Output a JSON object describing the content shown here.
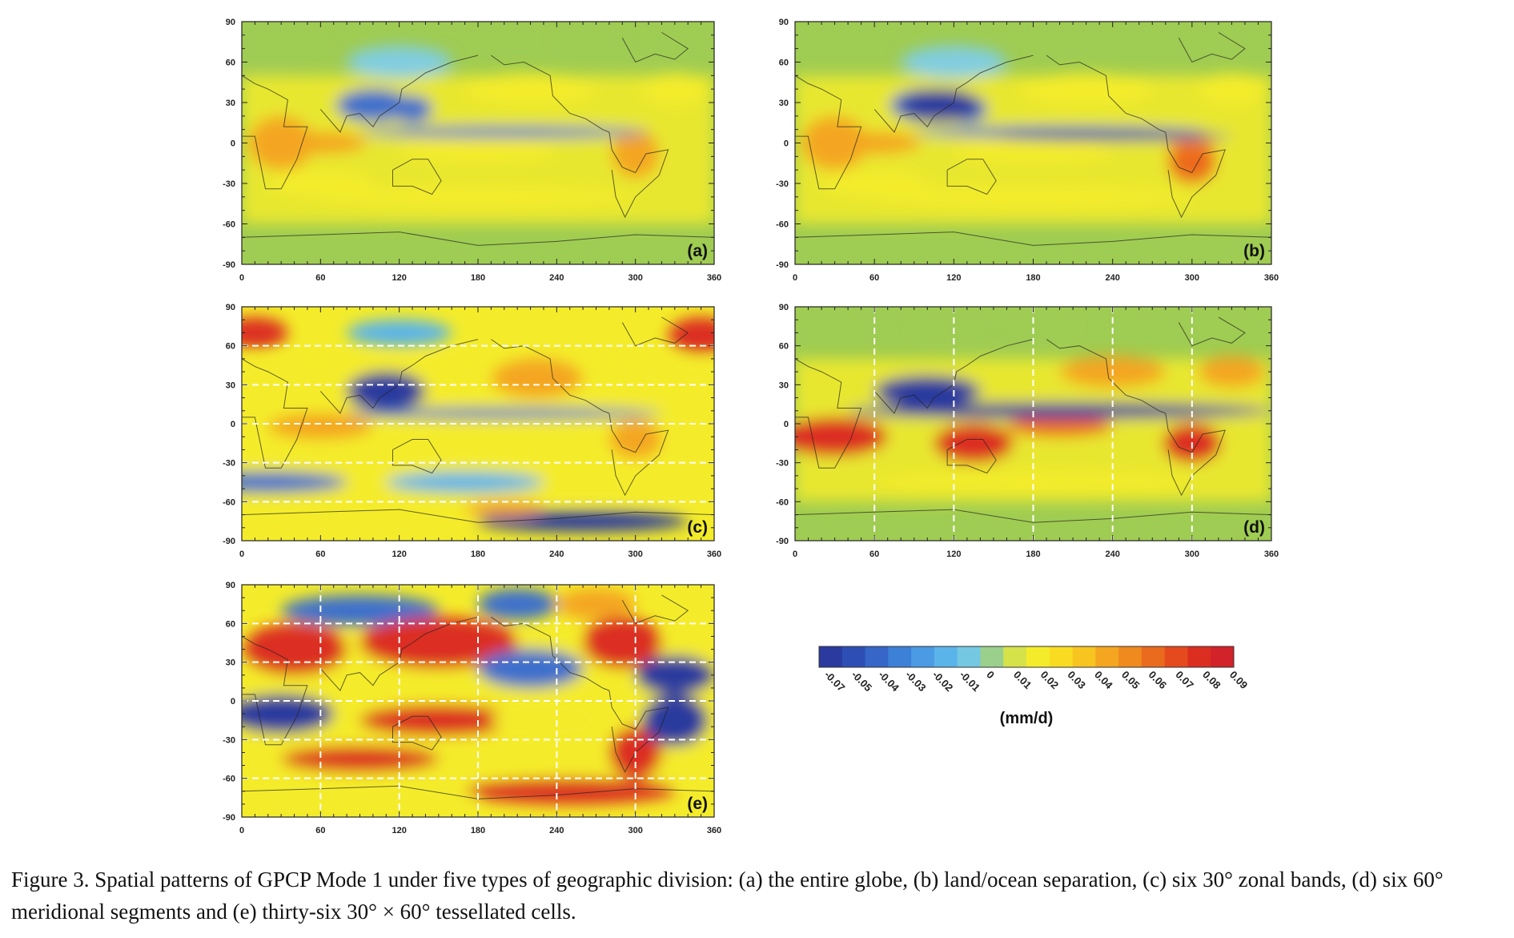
{
  "caption": "Figure 3.   Spatial patterns of GPCP Mode 1 under five types of geographic division: (a) the entire globe, (b) land/ocean separation, (c) six 30° zonal bands, (d) six 60° meridional segments and (e) thirty-six 30° × 60° tessellated cells.",
  "chart_data": [
    {
      "type": "heatmap",
      "panel_label": "(a)",
      "x_ticks": [
        "0",
        "60",
        "120",
        "180",
        "240",
        "300",
        "360"
      ],
      "y_ticks": [
        "90",
        "60",
        "30",
        "0",
        "-30",
        "-60",
        "-90"
      ],
      "xlim": [
        0,
        360
      ],
      "ylim": [
        -90,
        90
      ],
      "division": "none"
    },
    {
      "type": "heatmap",
      "panel_label": "(b)",
      "x_ticks": [
        "0",
        "60",
        "120",
        "180",
        "240",
        "300",
        "360"
      ],
      "y_ticks": [
        "90",
        "60",
        "30",
        "0",
        "-30",
        "-60",
        "-90"
      ],
      "xlim": [
        0,
        360
      ],
      "ylim": [
        -90,
        90
      ],
      "division": "land/ocean"
    },
    {
      "type": "heatmap",
      "panel_label": "(c)",
      "x_ticks": [
        "0",
        "60",
        "120",
        "180",
        "240",
        "300",
        "360"
      ],
      "y_ticks": [
        "90",
        "60",
        "30",
        "0",
        "-30",
        "-60",
        "-90"
      ],
      "xlim": [
        0,
        360
      ],
      "ylim": [
        -90,
        90
      ],
      "division": "zonal bands",
      "lat_breaks": [
        60,
        30,
        0,
        -30,
        -60
      ]
    },
    {
      "type": "heatmap",
      "panel_label": "(d)",
      "x_ticks": [
        "0",
        "60",
        "120",
        "180",
        "240",
        "300",
        "360"
      ],
      "y_ticks": [
        "90",
        "60",
        "30",
        "0",
        "-30",
        "-60",
        "-90"
      ],
      "xlim": [
        0,
        360
      ],
      "ylim": [
        -90,
        90
      ],
      "division": "meridional segments",
      "lon_breaks": [
        60,
        120,
        180,
        240,
        300
      ]
    },
    {
      "type": "heatmap",
      "panel_label": "(e)",
      "x_ticks": [
        "0",
        "60",
        "120",
        "180",
        "240",
        "300",
        "360"
      ],
      "y_ticks": [
        "90",
        "60",
        "30",
        "0",
        "-30",
        "-60",
        "-90"
      ],
      "xlim": [
        0,
        360
      ],
      "ylim": [
        -90,
        90
      ],
      "division": "tessellated cells",
      "lat_breaks": [
        60,
        30,
        0,
        -30,
        -60
      ],
      "lon_breaks": [
        60,
        120,
        180,
        240,
        300
      ]
    }
  ],
  "colorbar": {
    "ticks": [
      "-0.07",
      "-0.05",
      "-0.04",
      "-0.03",
      "-0.02",
      "-0.01",
      "0",
      "0.01",
      "0.02",
      "0.03",
      "0.04",
      "0.05",
      "0.06",
      "0.07",
      "0.08",
      "0.09"
    ],
    "unit": "(mm/d)",
    "colors": [
      "#2a3a9e",
      "#2d4fb5",
      "#3566c8",
      "#3d80d8",
      "#4a9ae4",
      "#5ab4ea",
      "#74c8e2",
      "#9ad08c",
      "#d6e24a",
      "#f4ec2a",
      "#f9dc22",
      "#f8c420",
      "#f4a620",
      "#ef8a1e",
      "#ea6a1e",
      "#e44a1e",
      "#dc2e20",
      "#d2222a"
    ]
  }
}
